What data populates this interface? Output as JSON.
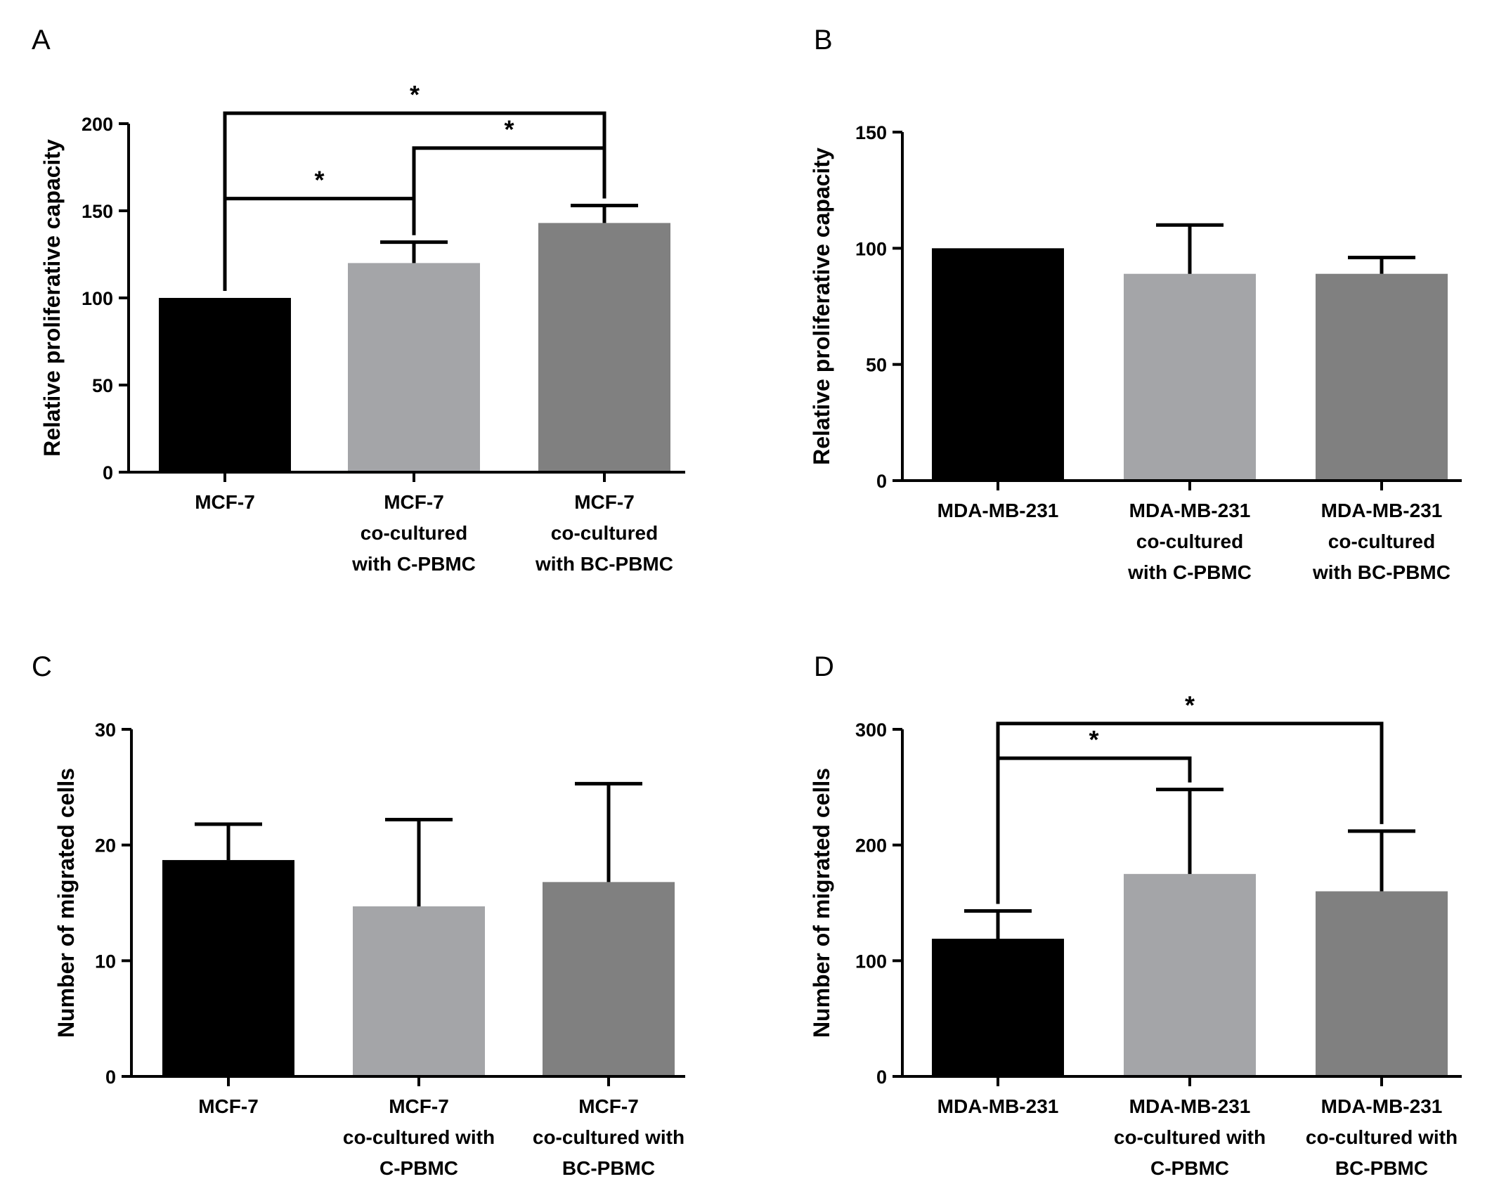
{
  "colors": {
    "black_bar": "#000000",
    "light_gray_bar": "#a4a5a8",
    "dark_gray_bar": "#808080",
    "axis": "#000000"
  },
  "chart_data": [
    {
      "panel": "A",
      "type": "bar",
      "ylabel": "Relative proliferative capacity",
      "ylim": [
        0,
        200
      ],
      "yticks": [
        0,
        50,
        100,
        150,
        200
      ],
      "categories": [
        [
          "MCF-7"
        ],
        [
          "MCF-7",
          "co-cultured",
          "with C-PBMC"
        ],
        [
          "MCF-7",
          "co-cultured",
          "with BC-PBMC"
        ]
      ],
      "values": [
        100,
        120,
        143
      ],
      "errors": [
        0,
        12,
        10
      ],
      "colors": [
        "#000000",
        "#a4a5a8",
        "#808080"
      ],
      "significance": [
        {
          "from": 0,
          "to": 1,
          "level": 157,
          "label": "*"
        },
        {
          "from": 1,
          "to": 2,
          "level": 186,
          "label": "*"
        },
        {
          "from": 0,
          "to": 2,
          "level": 206,
          "label": "*"
        }
      ]
    },
    {
      "panel": "B",
      "type": "bar",
      "ylabel": "Relative proliferative capacity",
      "ylim": [
        0,
        150
      ],
      "yticks": [
        0,
        50,
        100,
        150
      ],
      "categories": [
        [
          "MDA-MB-231"
        ],
        [
          "MDA-MB-231",
          "co-cultured",
          "with C-PBMC"
        ],
        [
          "MDA-MB-231",
          "co-cultured",
          "with BC-PBMC"
        ]
      ],
      "values": [
        100,
        89,
        89
      ],
      "errors": [
        0,
        21,
        7
      ],
      "colors": [
        "#000000",
        "#a4a5a8",
        "#808080"
      ],
      "significance": []
    },
    {
      "panel": "C",
      "type": "bar",
      "ylabel": "Number of migrated cells",
      "ylim": [
        0,
        30
      ],
      "yticks": [
        0,
        10,
        20,
        30
      ],
      "categories": [
        [
          "MCF-7"
        ],
        [
          "MCF-7",
          "co-cultured with",
          "C-PBMC"
        ],
        [
          "MCF-7",
          "co-cultured with",
          "BC-PBMC"
        ]
      ],
      "values": [
        18.7,
        14.7,
        16.8
      ],
      "errors": [
        3.1,
        7.5,
        8.5
      ],
      "colors": [
        "#000000",
        "#a4a5a8",
        "#808080"
      ],
      "significance": []
    },
    {
      "panel": "D",
      "type": "bar",
      "ylabel": "Number of migrated cells",
      "ylim": [
        0,
        300
      ],
      "yticks": [
        0,
        100,
        200,
        300
      ],
      "categories": [
        [
          "MDA-MB-231"
        ],
        [
          "MDA-MB-231",
          "co-cultured with",
          "C-PBMC"
        ],
        [
          "MDA-MB-231",
          "co-cultured with",
          "BC-PBMC"
        ]
      ],
      "values": [
        119,
        175,
        160
      ],
      "errors": [
        24,
        73,
        52
      ],
      "colors": [
        "#000000",
        "#a4a5a8",
        "#808080"
      ],
      "significance": [
        {
          "from": 0,
          "to": 1,
          "level": 275,
          "label": "*"
        },
        {
          "from": 0,
          "to": 2,
          "level": 305,
          "label": "*"
        }
      ]
    }
  ]
}
